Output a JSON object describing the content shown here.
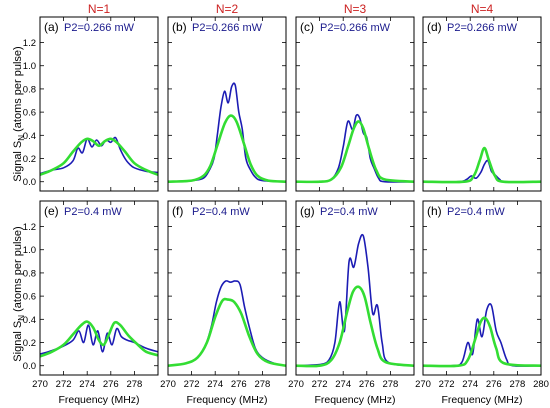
{
  "column_titles": [
    "N=1",
    "N=2",
    "N=3",
    "N=4"
  ],
  "ylabel_main": "Signal S",
  "ylabel_sub": "N",
  "ylabel_tail": " (atoms per pulse)",
  "xlabel": "Frequency (MHz)",
  "colors": {
    "column_title": "#cc2222",
    "annotation": "#1a1a8c",
    "experiment": "#1c1cb4",
    "theory": "#33dd33",
    "axis": "#000000"
  },
  "chart_data": [
    {
      "type": "line",
      "panel": "(a)",
      "label": "(a)",
      "annotation": "P2=0.266 mW",
      "xlim": [
        270,
        280
      ],
      "ylim": [
        -0.08,
        1.42
      ],
      "xticks": [],
      "yticks": [
        "0.0",
        "0.2",
        "0.4",
        "0.6",
        "0.8",
        "1.0",
        "1.2"
      ],
      "series": [
        {
          "type": "experiment",
          "x": [
            270,
            271,
            272,
            272.8,
            273.2,
            273.6,
            274.0,
            274.4,
            274.8,
            275.2,
            275.6,
            276.0,
            276.4,
            276.8,
            277.2,
            277.6,
            278,
            279,
            280
          ],
          "y": [
            0.07,
            0.1,
            0.12,
            0.18,
            0.29,
            0.25,
            0.37,
            0.3,
            0.36,
            0.31,
            0.36,
            0.34,
            0.38,
            0.28,
            0.2,
            0.15,
            0.12,
            0.09,
            0.08
          ]
        },
        {
          "type": "theory",
          "x": [
            270,
            271,
            272,
            272.8,
            273.5,
            274.0,
            274.5,
            275.0,
            275.5,
            276.0,
            276.5,
            277.2,
            278,
            279,
            280
          ],
          "y": [
            0.06,
            0.1,
            0.16,
            0.26,
            0.34,
            0.37,
            0.35,
            0.31,
            0.35,
            0.37,
            0.34,
            0.26,
            0.16,
            0.1,
            0.06
          ]
        }
      ]
    },
    {
      "type": "line",
      "panel": "(b)",
      "label": "(b)",
      "annotation": "P2=0.266 mW",
      "xlim": [
        270,
        280
      ],
      "ylim": [
        -0.08,
        1.42
      ],
      "xticks": [],
      "yticks": [],
      "series": [
        {
          "type": "experiment",
          "x": [
            270,
            272,
            273,
            273.5,
            273.9,
            274.2,
            274.5,
            274.8,
            275.1,
            275.4,
            275.7,
            276.0,
            276.3,
            276.6,
            277.0,
            277.4,
            278,
            280
          ],
          "y": [
            0.0,
            0.01,
            0.03,
            0.1,
            0.2,
            0.42,
            0.65,
            0.78,
            0.68,
            0.82,
            0.83,
            0.6,
            0.45,
            0.2,
            0.1,
            0.04,
            0.01,
            0.0
          ]
        },
        {
          "type": "theory",
          "x": [
            270,
            272,
            273,
            273.6,
            274.2,
            274.8,
            275.3,
            275.8,
            276.4,
            277.0,
            277.6,
            278.5,
            280
          ],
          "y": [
            0.0,
            0.01,
            0.05,
            0.14,
            0.32,
            0.5,
            0.57,
            0.52,
            0.34,
            0.15,
            0.05,
            0.01,
            0.0
          ]
        }
      ]
    },
    {
      "type": "line",
      "panel": "(c)",
      "label": "(c)",
      "annotation": "P2=0.266 mW",
      "xlim": [
        270,
        280
      ],
      "ylim": [
        -0.08,
        1.42
      ],
      "xticks": [],
      "yticks": [],
      "series": [
        {
          "type": "experiment",
          "x": [
            270,
            272,
            273,
            273.6,
            274.0,
            274.4,
            274.8,
            275.1,
            275.4,
            275.7,
            276.0,
            276.3,
            276.6,
            277.0,
            277.5,
            280
          ],
          "y": [
            0.0,
            0.0,
            0.02,
            0.12,
            0.3,
            0.52,
            0.45,
            0.57,
            0.55,
            0.42,
            0.38,
            0.2,
            0.12,
            0.03,
            0.0,
            0.0
          ]
        },
        {
          "type": "theory",
          "x": [
            270,
            272,
            273,
            273.8,
            274.4,
            274.9,
            275.3,
            275.7,
            276.2,
            276.8,
            277.5,
            280
          ],
          "y": [
            0.0,
            0.0,
            0.02,
            0.12,
            0.3,
            0.46,
            0.52,
            0.46,
            0.28,
            0.1,
            0.02,
            0.0
          ]
        }
      ]
    },
    {
      "type": "line",
      "panel": "(d)",
      "label": "(d)",
      "annotation": "P2=0.266 mW",
      "xlim": [
        270,
        280
      ],
      "ylim": [
        -0.08,
        1.42
      ],
      "xticks": [],
      "yticks": [],
      "series": [
        {
          "type": "experiment",
          "x": [
            270,
            273,
            273.7,
            274.1,
            274.5,
            274.9,
            275.2,
            275.5,
            275.8,
            276.1,
            276.5,
            277,
            280
          ],
          "y": [
            0.0,
            0.0,
            0.02,
            0.05,
            0.03,
            0.08,
            0.15,
            0.18,
            0.09,
            0.06,
            0.02,
            0.0,
            0.0
          ]
        },
        {
          "type": "theory",
          "x": [
            270,
            273.5,
            274.3,
            274.8,
            275.2,
            275.6,
            276.1,
            276.8,
            280
          ],
          "y": [
            0.0,
            0.0,
            0.05,
            0.18,
            0.29,
            0.18,
            0.05,
            0.0,
            0.0
          ]
        }
      ]
    },
    {
      "type": "line",
      "panel": "(e)",
      "label": "(e)",
      "annotation": "P2=0.4 mW",
      "xlim": [
        270,
        280
      ],
      "ylim": [
        -0.08,
        1.42
      ],
      "xticks": [
        "270",
        "272",
        "274",
        "276",
        "278"
      ],
      "yticks": [
        "0.0",
        "0.2",
        "0.4",
        "0.6",
        "0.8",
        "1.0",
        "1.2"
      ],
      "series": [
        {
          "type": "experiment",
          "x": [
            270,
            271,
            272,
            272.8,
            273.3,
            273.7,
            274.1,
            274.5,
            274.9,
            275.3,
            275.7,
            276.1,
            276.5,
            276.9,
            277.4,
            278,
            279,
            280
          ],
          "y": [
            0.1,
            0.13,
            0.17,
            0.22,
            0.3,
            0.2,
            0.35,
            0.18,
            0.3,
            0.12,
            0.28,
            0.18,
            0.32,
            0.25,
            0.22,
            0.2,
            0.15,
            0.12
          ]
        },
        {
          "type": "theory",
          "x": [
            270,
            271,
            272,
            272.8,
            273.5,
            274.0,
            274.5,
            275.0,
            275.4,
            275.8,
            276.3,
            276.8,
            277.5,
            278.3,
            279,
            280
          ],
          "y": [
            0.08,
            0.12,
            0.18,
            0.27,
            0.35,
            0.38,
            0.33,
            0.22,
            0.18,
            0.26,
            0.37,
            0.35,
            0.26,
            0.18,
            0.12,
            0.09
          ]
        }
      ]
    },
    {
      "type": "line",
      "panel": "(f)",
      "label": "(f)",
      "annotation": "P2=0.4 mW",
      "xlim": [
        270,
        280
      ],
      "ylim": [
        -0.08,
        1.42
      ],
      "xticks": [
        "270",
        "272",
        "274",
        "276",
        "278"
      ],
      "yticks": [],
      "series": [
        {
          "type": "experiment",
          "x": [
            270,
            271.5,
            272.5,
            273.2,
            273.7,
            274.1,
            274.5,
            274.9,
            275.3,
            275.7,
            276.1,
            276.5,
            276.9,
            277.4,
            278,
            279,
            280
          ],
          "y": [
            0.0,
            0.02,
            0.07,
            0.18,
            0.35,
            0.55,
            0.68,
            0.73,
            0.72,
            0.73,
            0.7,
            0.5,
            0.33,
            0.15,
            0.07,
            0.02,
            0.0
          ]
        },
        {
          "type": "theory",
          "x": [
            270,
            271.5,
            272.5,
            273.3,
            274.0,
            274.6,
            275.1,
            275.6,
            276.2,
            276.9,
            277.6,
            278.5,
            280
          ],
          "y": [
            0.0,
            0.02,
            0.07,
            0.2,
            0.42,
            0.56,
            0.57,
            0.55,
            0.45,
            0.25,
            0.1,
            0.03,
            0.0
          ]
        }
      ]
    },
    {
      "type": "line",
      "panel": "(g)",
      "label": "(g)",
      "annotation": "P2=0.4 mW",
      "xlim": [
        270,
        280
      ],
      "ylim": [
        -0.08,
        1.42
      ],
      "xticks": [
        "270",
        "272",
        "274",
        "276",
        "278"
      ],
      "yticks": [],
      "series": [
        {
          "type": "experiment",
          "x": [
            270,
            272,
            272.8,
            273.3,
            273.7,
            274.1,
            274.5,
            274.9,
            275.3,
            275.7,
            276.1,
            276.5,
            276.9,
            277.3,
            277.8,
            280
          ],
          "y": [
            0.0,
            0.01,
            0.05,
            0.2,
            0.55,
            0.3,
            0.9,
            0.85,
            1.05,
            1.12,
            0.85,
            0.45,
            0.52,
            0.2,
            0.03,
            0.0
          ]
        },
        {
          "type": "theory",
          "x": [
            270,
            272,
            273,
            273.7,
            274.3,
            274.8,
            275.3,
            275.8,
            276.3,
            276.9,
            277.6,
            280
          ],
          "y": [
            0.0,
            0.0,
            0.05,
            0.2,
            0.45,
            0.63,
            0.68,
            0.6,
            0.38,
            0.15,
            0.03,
            0.0
          ]
        }
      ]
    },
    {
      "type": "line",
      "panel": "(h)",
      "label": "(h)",
      "annotation": "P2=0.4 mW",
      "xlim": [
        270,
        280
      ],
      "ylim": [
        -0.08,
        1.42
      ],
      "xticks": [
        "270",
        "272",
        "274",
        "276",
        "278",
        "280"
      ],
      "yticks": [],
      "series": [
        {
          "type": "experiment",
          "x": [
            270,
            272.5,
            273.3,
            273.8,
            274.2,
            274.6,
            275.0,
            275.4,
            275.8,
            276.2,
            276.6,
            277.1,
            277.6,
            280
          ],
          "y": [
            0.0,
            0.0,
            0.03,
            0.2,
            0.1,
            0.4,
            0.25,
            0.48,
            0.52,
            0.3,
            0.2,
            0.05,
            0.0,
            0.0
          ]
        },
        {
          "type": "theory",
          "x": [
            270,
            273,
            273.8,
            274.4,
            274.9,
            275.3,
            275.7,
            276.2,
            276.9,
            280
          ],
          "y": [
            0.0,
            0.0,
            0.05,
            0.22,
            0.38,
            0.41,
            0.33,
            0.15,
            0.02,
            0.0
          ]
        }
      ]
    }
  ]
}
